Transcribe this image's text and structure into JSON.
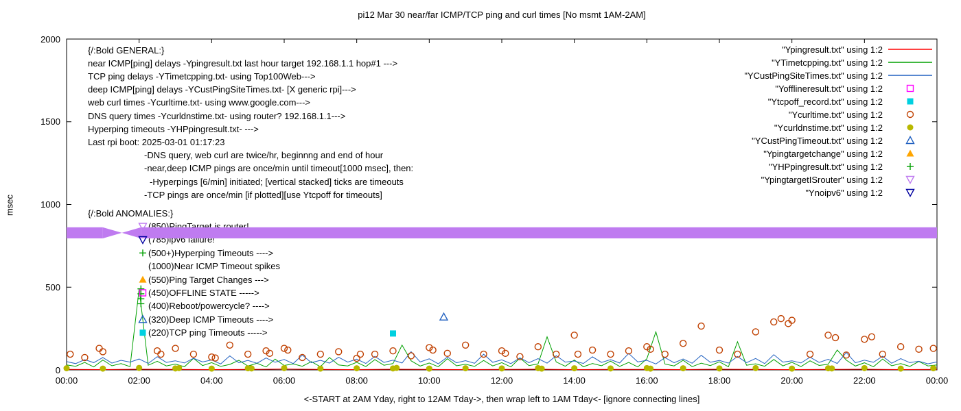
{
  "title": "pi12 Mar 30  near/far ICMP/TCP ping and curl times [No msmt 1AM-2AM]",
  "ylabel": "msec",
  "xlabel": "<-START at 2AM Yday, right to 12AM Tday->, then wrap left to 1AM Tday<- [ignore connecting lines]",
  "legend": [
    {
      "label": "\"Ypingresult.txt\" using 1:2",
      "marker": "line",
      "color": "#ff0000"
    },
    {
      "label": "\"YTimetcpping.txt\" using 1:2",
      "marker": "line",
      "color": "#00a000"
    },
    {
      "label": "\"YCustPingSiteTimes.txt\" using 1:2",
      "marker": "line",
      "color": "#2060c0"
    },
    {
      "label": "\"Yofflineresult.txt\" using 1:2",
      "marker": "square-open",
      "color": "#ff00ff"
    },
    {
      "label": "\"Ytcpoff_record.txt\" using 1:2",
      "marker": "square-filled",
      "color": "#00d0e0"
    },
    {
      "label": "\"Ycurltime.txt\" using 1:2",
      "marker": "circle-open",
      "color": "#c04000"
    },
    {
      "label": "\"Ycurldnstime.txt\" using 1:2",
      "marker": "circle-filled",
      "color": "#b8b800"
    },
    {
      "label": "\"YCustPingTimeout.txt\" using 1:2",
      "marker": "triangle-open",
      "color": "#2060c0"
    },
    {
      "label": "\"Ypingtargetchange\" using 1:2",
      "marker": "triangle-filled",
      "color": "#ffa500"
    },
    {
      "label": "\"YHPpingresult.txt\" using 1:2",
      "marker": "plus",
      "color": "#00a000"
    },
    {
      "label": "\"YpingtargetISrouter\" using 1:2",
      "marker": "triangle-down-open",
      "color": "#bf7bf0"
    },
    {
      "label": "\"Ynoipv6\" using 1:2",
      "marker": "triangle-down-open",
      "color": "#0000a0"
    }
  ],
  "annotations": {
    "general": [
      {
        "x": 128,
        "text": "{/:Bold GENERAL:}"
      },
      {
        "x": 128,
        "text": "near ICMP[ping] delays -Ypingresult.txt last hour target 192.168.1.1 hop#1 --->"
      },
      {
        "x": 128,
        "text": "TCP ping delays -YTimetcpping.txt- using Top100Web--->"
      },
      {
        "x": 128,
        "text": "deep ICMP[ping] delays -YCustPingSiteTimes.txt- [X generic rpi]--->"
      },
      {
        "x": 128,
        "text": "web curl times -Ycurltime.txt- using www.google.com--->"
      },
      {
        "x": 128,
        "text": "DNS query times -Ycurldnstime.txt- using router? 192.168.1.1--->"
      },
      {
        "x": 128,
        "text": "Hyperping timeouts -YHPpingresult.txt- --->"
      },
      {
        "x": 128,
        "text": "Last rpi boot: 2025-03-01 01:17:23"
      },
      {
        "x": 210,
        "text": "-DNS query, web curl are twice/hr, beginnng and end of hour"
      },
      {
        "x": 210,
        "text": "-near,deep ICMP pings are once/min until timeout[1000 msec], then:"
      },
      {
        "x": 218,
        "text": "-Hyperpings [6/min] initiated; [vertical stacked] ticks are timeouts"
      },
      {
        "x": 210,
        "text": "-TCP pings are once/min [if plotted][use Ytcpoff for timeouts]"
      }
    ],
    "anomalies_header": "{/:Bold ANOMALIES:}",
    "anomalies": [
      {
        "marker": "triangle-down-open",
        "color": "#bf7bf0",
        "text": "(850)PingTarget is router!"
      },
      {
        "marker": "triangle-down-open",
        "color": "#0000a0",
        "text": "(785)ipv6 failure!"
      },
      {
        "marker": "plus",
        "color": "#00a000",
        "text": "(500+)Hyperping Timeouts ---->"
      },
      {
        "marker": "none",
        "color": "#000000",
        "text": "(1000)Near ICMP Timeout spikes"
      },
      {
        "marker": "triangle-filled",
        "color": "#ffa500",
        "text": "(550)Ping Target Changes --->"
      },
      {
        "marker": "square-open",
        "color": "#ff00ff",
        "text": "(450)OFFLINE STATE ----->"
      },
      {
        "marker": "none",
        "color": "#000000",
        "text": "(400)Reboot/powercycle? ---->"
      },
      {
        "marker": "triangle-open",
        "color": "#2060c0",
        "text": "(320)Deep ICMP Timeouts ---->"
      },
      {
        "marker": "square-filled",
        "color": "#00d0e0",
        "text": "(220)TCP ping Timeouts ----->"
      }
    ]
  },
  "chart_data": {
    "type": "line",
    "x_min": 0,
    "x_max": 24,
    "y_min": 0,
    "y_max": 2000,
    "xtick_hours": [
      0,
      2,
      4,
      6,
      8,
      10,
      12,
      14,
      16,
      18,
      20,
      22,
      24
    ],
    "xtick_labels": [
      "00:00",
      "02:00",
      "04:00",
      "06:00",
      "08:00",
      "10:00",
      "12:00",
      "14:00",
      "16:00",
      "18:00",
      "20:00",
      "22:00",
      "00:00"
    ],
    "yticks": [
      0,
      500,
      1000,
      1500,
      2000
    ],
    "series": [
      {
        "name": "Ypingresult.txt",
        "type": "line",
        "color": "#ff0000",
        "x_start": 0,
        "x_step": 1,
        "values": [
          3,
          2,
          4,
          3,
          2,
          3,
          5,
          3,
          2,
          4,
          3,
          2,
          3,
          4,
          2,
          3,
          3,
          2,
          4,
          3,
          2,
          3,
          4,
          2,
          3
        ]
      },
      {
        "name": "YTimetcpping.txt",
        "type": "line",
        "color": "#00a000",
        "x_start": 0,
        "x_step": 0.25,
        "values": [
          30,
          22,
          45,
          18,
          60,
          25,
          38,
          20,
          490,
          28,
          52,
          24,
          35,
          19,
          70,
          26,
          44,
          21,
          33,
          58,
          23,
          40,
          18,
          65,
          27,
          36,
          22,
          50,
          19,
          75,
          30,
          24,
          46,
          20,
          62,
          28,
          38,
          150,
          55,
          23,
          42,
          19,
          68,
          25,
          34,
          21,
          57,
          24,
          44,
          18,
          72,
          26,
          36,
          200,
          48,
          22,
          60,
          19,
          39,
          25,
          53,
          21,
          45,
          18,
          67,
          230,
          35,
          24,
          58,
          20,
          41,
          26,
          49,
          19,
          170,
          28,
          37,
          22,
          63,
          24,
          46,
          20,
          55,
          27,
          34,
          120,
          59,
          23,
          43,
          19,
          66,
          25,
          38,
          21,
          51,
          24,
          30
        ]
      },
      {
        "name": "YCustPingSiteTimes.txt",
        "type": "line",
        "color": "#2060c0",
        "x_start": 0,
        "x_step": 0.25,
        "values": [
          50,
          38,
          62,
          44,
          75,
          41,
          58,
          47,
          66,
          39,
          80,
          45,
          55,
          42,
          70,
          48,
          60,
          36,
          85,
          43,
          57,
          40,
          72,
          46,
          63,
          38,
          90,
          44,
          58,
          41,
          76,
          47,
          65,
          39,
          82,
          45,
          59,
          42,
          110,
          48,
          67,
          37,
          78,
          43,
          56,
          40,
          95,
          46,
          61,
          38,
          73,
          44,
          68,
          41,
          86,
          47,
          54,
          39,
          79,
          45,
          62,
          42,
          100,
          48,
          58,
          36,
          74,
          43,
          66,
          40,
          88,
          46,
          57,
          41,
          81,
          44,
          69,
          38,
          92,
          47,
          55,
          42,
          77,
          45,
          64,
          39,
          105,
          43,
          59,
          46,
          83,
          40,
          68,
          44,
          52,
          37,
          48
        ]
      },
      {
        "name": "Ycurltime.txt",
        "type": "scatter",
        "marker": "circle-open",
        "color": "#c04000",
        "points": [
          [
            0.1,
            95
          ],
          [
            0.5,
            75
          ],
          [
            0.9,
            130
          ],
          [
            1.0,
            110
          ],
          [
            2.5,
            115
          ],
          [
            2.6,
            95
          ],
          [
            3.0,
            130
          ],
          [
            3.5,
            95
          ],
          [
            4.0,
            78
          ],
          [
            4.1,
            72
          ],
          [
            4.5,
            150
          ],
          [
            5.0,
            95
          ],
          [
            5.5,
            115
          ],
          [
            5.6,
            100
          ],
          [
            6.0,
            130
          ],
          [
            6.1,
            120
          ],
          [
            6.5,
            75
          ],
          [
            7.0,
            95
          ],
          [
            7.5,
            110
          ],
          [
            8.0,
            70
          ],
          [
            8.1,
            95
          ],
          [
            8.5,
            95
          ],
          [
            9.0,
            115
          ],
          [
            9.5,
            85
          ],
          [
            10.0,
            135
          ],
          [
            10.1,
            120
          ],
          [
            10.5,
            100
          ],
          [
            11.0,
            150
          ],
          [
            11.5,
            95
          ],
          [
            12.0,
            115
          ],
          [
            12.1,
            100
          ],
          [
            12.5,
            80
          ],
          [
            13.0,
            140
          ],
          [
            13.5,
            95
          ],
          [
            14.0,
            210
          ],
          [
            14.1,
            95
          ],
          [
            14.5,
            120
          ],
          [
            15.0,
            95
          ],
          [
            15.5,
            115
          ],
          [
            16.0,
            140
          ],
          [
            16.1,
            125
          ],
          [
            16.5,
            95
          ],
          [
            17.0,
            160
          ],
          [
            17.5,
            265
          ],
          [
            18.0,
            120
          ],
          [
            18.5,
            95
          ],
          [
            19.0,
            230
          ],
          [
            19.5,
            290
          ],
          [
            19.7,
            310
          ],
          [
            19.9,
            280
          ],
          [
            20.0,
            300
          ],
          [
            20.5,
            95
          ],
          [
            21.0,
            210
          ],
          [
            21.2,
            195
          ],
          [
            21.5,
            90
          ],
          [
            22.0,
            185
          ],
          [
            22.2,
            200
          ],
          [
            22.5,
            95
          ],
          [
            23.0,
            140
          ],
          [
            23.5,
            125
          ],
          [
            23.9,
            130
          ]
        ]
      },
      {
        "name": "Ycurldnstime.txt",
        "type": "scatter",
        "marker": "circle-filled",
        "color": "#b8b800",
        "points": [
          [
            0,
            10
          ],
          [
            1,
            8
          ],
          [
            2,
            12
          ],
          [
            3,
            9
          ],
          [
            3.1,
            11
          ],
          [
            4,
            8
          ],
          [
            5,
            10
          ],
          [
            5.1,
            9
          ],
          [
            6,
            11
          ],
          [
            7,
            8
          ],
          [
            8,
            10
          ],
          [
            9,
            9
          ],
          [
            9.1,
            12
          ],
          [
            10,
            8
          ],
          [
            11,
            10
          ],
          [
            12,
            9
          ],
          [
            13,
            11
          ],
          [
            13.1,
            8
          ],
          [
            14,
            10
          ],
          [
            15,
            9
          ],
          [
            16,
            11
          ],
          [
            16.1,
            8
          ],
          [
            17,
            10
          ],
          [
            18,
            9
          ],
          [
            19,
            11
          ],
          [
            20,
            8
          ],
          [
            21,
            10
          ],
          [
            21.1,
            9
          ],
          [
            22,
            11
          ],
          [
            23,
            8
          ],
          [
            23.9,
            10
          ]
        ]
      },
      {
        "name": "Ytcpoff_record.txt",
        "type": "scatter",
        "marker": "square-filled",
        "color": "#00d0e0",
        "points": [
          [
            9.0,
            220
          ]
        ]
      },
      {
        "name": "YCustPingTimeout.txt",
        "type": "scatter",
        "marker": "triangle-open",
        "color": "#2060c0",
        "points": [
          [
            10.4,
            320
          ]
        ]
      },
      {
        "name": "YHPpingresult.txt",
        "type": "scatter",
        "marker": "plus",
        "color": "#00a000",
        "points": [
          [
            2.05,
            400
          ],
          [
            2.05,
            430
          ],
          [
            2.05,
            460
          ],
          [
            2.05,
            490
          ]
        ]
      },
      {
        "name": "YpingtargetISrouter",
        "type": "band",
        "color": "#bf7bf0",
        "y_low": 795,
        "y_high": 862,
        "gap_start": 1.0,
        "gap_end": 2.05
      }
    ]
  }
}
